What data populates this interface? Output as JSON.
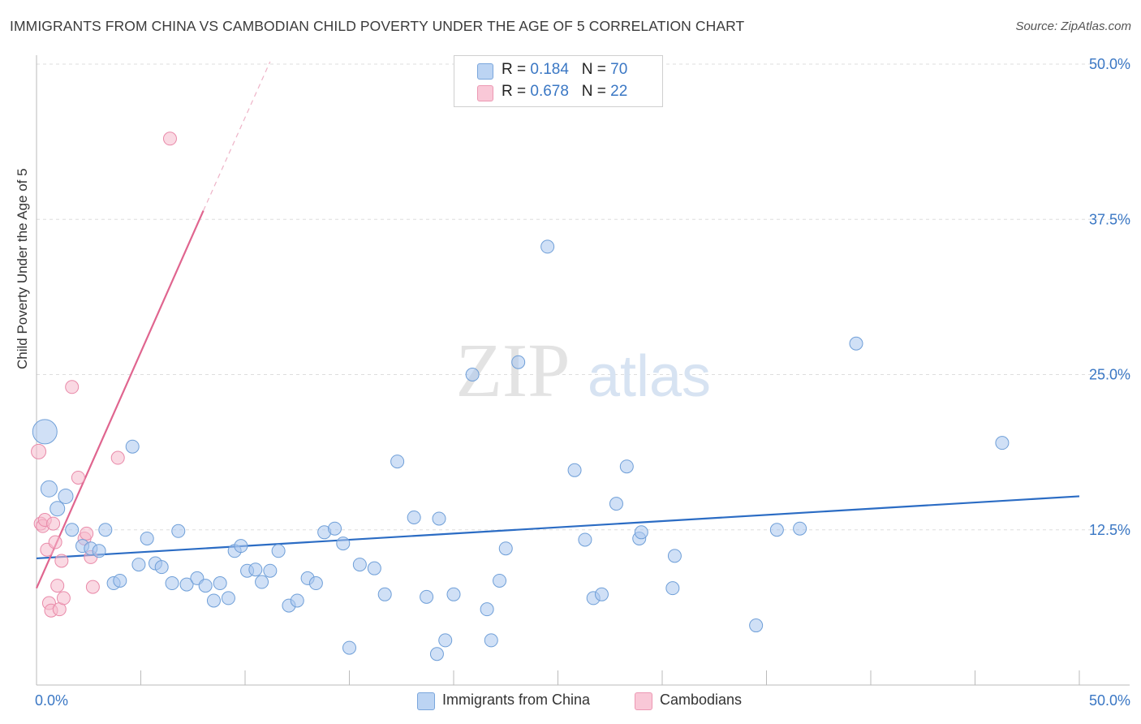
{
  "title": "IMMIGRANTS FROM CHINA VS CAMBODIAN CHILD POVERTY UNDER THE AGE OF 5 CORRELATION CHART",
  "source": "Source: ZipAtlas.com",
  "watermark": {
    "zip": "ZIP",
    "atlas": "atlas"
  },
  "legend": {
    "rows": [
      {
        "r_label": "R = ",
        "r_value": "0.184",
        "n_label": "N = ",
        "n_value": "70"
      },
      {
        "r_label": "R = ",
        "r_value": "0.678",
        "n_label": "N = ",
        "n_value": "22"
      }
    ]
  },
  "chart_data": {
    "type": "scatter",
    "title": "IMMIGRANTS FROM CHINA VS CAMBODIAN CHILD POVERTY UNDER THE AGE OF 5 CORRELATION CHART",
    "xlabel": "",
    "ylabel": "Child Poverty Under the Age of 5",
    "xlim": [
      0,
      50
    ],
    "ylim": [
      0,
      50
    ],
    "x_tick_labels": [
      "0.0%",
      "50.0%"
    ],
    "y_tick_labels": [
      "12.5%",
      "25.0%",
      "37.5%",
      "50.0%"
    ],
    "y_ticks": [
      12.5,
      25.0,
      37.5,
      50.0
    ],
    "grid": true,
    "legend_position": "top-center",
    "colors": {
      "china": "#a9c7ef",
      "china_edge": "#6f9fd8",
      "china_line": "#2b6cc4",
      "cambodian": "#f6b9cc",
      "cambodian_edge": "#e98aa9",
      "cambodian_line": "#e0658f"
    },
    "series": [
      {
        "name": "Immigrants from China",
        "r": 0.184,
        "n": 70,
        "trend": {
          "x0": 0,
          "y0": 10.2,
          "x1": 50,
          "y1": 15.2
        },
        "points": [
          [
            0.4,
            20.4,
            30
          ],
          [
            0.6,
            15.8,
            20
          ],
          [
            1.0,
            14.2,
            18
          ],
          [
            1.4,
            15.2,
            18
          ],
          [
            1.7,
            12.5,
            16
          ],
          [
            2.2,
            11.2,
            16
          ],
          [
            2.6,
            11.0,
            16
          ],
          [
            3.0,
            10.8,
            16
          ],
          [
            3.3,
            12.5,
            16
          ],
          [
            3.7,
            8.2,
            16
          ],
          [
            4.0,
            8.4,
            16
          ],
          [
            4.6,
            19.2,
            16
          ],
          [
            4.9,
            9.7,
            16
          ],
          [
            5.3,
            11.8,
            16
          ],
          [
            5.7,
            9.8,
            16
          ],
          [
            6.0,
            9.5,
            16
          ],
          [
            6.5,
            8.2,
            16
          ],
          [
            6.8,
            12.4,
            16
          ],
          [
            7.2,
            8.1,
            16
          ],
          [
            7.7,
            8.6,
            16
          ],
          [
            8.1,
            8.0,
            16
          ],
          [
            8.5,
            6.8,
            16
          ],
          [
            8.8,
            8.2,
            16
          ],
          [
            9.2,
            7.0,
            16
          ],
          [
            9.5,
            10.8,
            16
          ],
          [
            9.8,
            11.2,
            16
          ],
          [
            10.1,
            9.2,
            16
          ],
          [
            10.5,
            9.3,
            16
          ],
          [
            10.8,
            8.3,
            16
          ],
          [
            11.2,
            9.2,
            16
          ],
          [
            11.6,
            10.8,
            16
          ],
          [
            12.1,
            6.4,
            16
          ],
          [
            12.5,
            6.8,
            16
          ],
          [
            13.0,
            8.6,
            16
          ],
          [
            13.4,
            8.2,
            16
          ],
          [
            13.8,
            12.3,
            16
          ],
          [
            14.3,
            12.6,
            16
          ],
          [
            14.7,
            11.4,
            16
          ],
          [
            15.0,
            3.0,
            16
          ],
          [
            15.5,
            9.7,
            16
          ],
          [
            16.2,
            9.4,
            16
          ],
          [
            16.7,
            7.3,
            16
          ],
          [
            17.3,
            18.0,
            16
          ],
          [
            18.1,
            13.5,
            16
          ],
          [
            18.7,
            7.1,
            16
          ],
          [
            19.2,
            2.5,
            16
          ],
          [
            19.6,
            3.6,
            16
          ],
          [
            19.3,
            13.4,
            16
          ],
          [
            20.0,
            7.3,
            16
          ],
          [
            20.9,
            25.0,
            16
          ],
          [
            21.6,
            6.1,
            16
          ],
          [
            21.8,
            3.6,
            16
          ],
          [
            22.2,
            8.4,
            16
          ],
          [
            22.5,
            11.0,
            16
          ],
          [
            23.1,
            26.0,
            16
          ],
          [
            24.5,
            35.3,
            16
          ],
          [
            25.8,
            17.3,
            16
          ],
          [
            26.3,
            11.7,
            16
          ],
          [
            26.7,
            7.0,
            16
          ],
          [
            27.1,
            7.3,
            16
          ],
          [
            27.8,
            14.6,
            16
          ],
          [
            28.3,
            17.6,
            16
          ],
          [
            28.9,
            11.8,
            16
          ],
          [
            29.0,
            12.3,
            16
          ],
          [
            30.6,
            10.4,
            16
          ],
          [
            30.5,
            7.8,
            16
          ],
          [
            34.5,
            4.8,
            16
          ],
          [
            35.5,
            12.5,
            16
          ],
          [
            36.6,
            12.6,
            16
          ],
          [
            39.3,
            27.5,
            16
          ],
          [
            46.3,
            19.5,
            16
          ]
        ]
      },
      {
        "name": "Cambodians",
        "r": 0.678,
        "n": 22,
        "trend": {
          "x0": 0,
          "y0": 7.8,
          "x1": 8.0,
          "y1": 38.2
        },
        "trend_dashed": {
          "x0": 8.0,
          "y0": 38.2,
          "x1": 11.2,
          "y1": 50.2
        },
        "points": [
          [
            0.1,
            18.8,
            18
          ],
          [
            0.2,
            13.0,
            16
          ],
          [
            0.3,
            12.8,
            16
          ],
          [
            0.4,
            13.3,
            16
          ],
          [
            0.5,
            10.9,
            16
          ],
          [
            0.6,
            6.6,
            16
          ],
          [
            0.7,
            6.0,
            16
          ],
          [
            0.8,
            13.0,
            16
          ],
          [
            0.9,
            11.5,
            16
          ],
          [
            1.0,
            8.0,
            16
          ],
          [
            1.1,
            6.1,
            16
          ],
          [
            1.2,
            10.0,
            16
          ],
          [
            1.3,
            7.0,
            16
          ],
          [
            1.7,
            24.0,
            16
          ],
          [
            2.0,
            16.7,
            16
          ],
          [
            2.3,
            11.8,
            16
          ],
          [
            2.4,
            12.2,
            16
          ],
          [
            2.6,
            10.3,
            16
          ],
          [
            2.7,
            7.9,
            16
          ],
          [
            3.9,
            18.3,
            16
          ],
          [
            6.4,
            44.0,
            16
          ]
        ]
      }
    ]
  },
  "bottom_legend": [
    {
      "label": "Immigrants from China"
    },
    {
      "label": "Cambodians"
    }
  ]
}
